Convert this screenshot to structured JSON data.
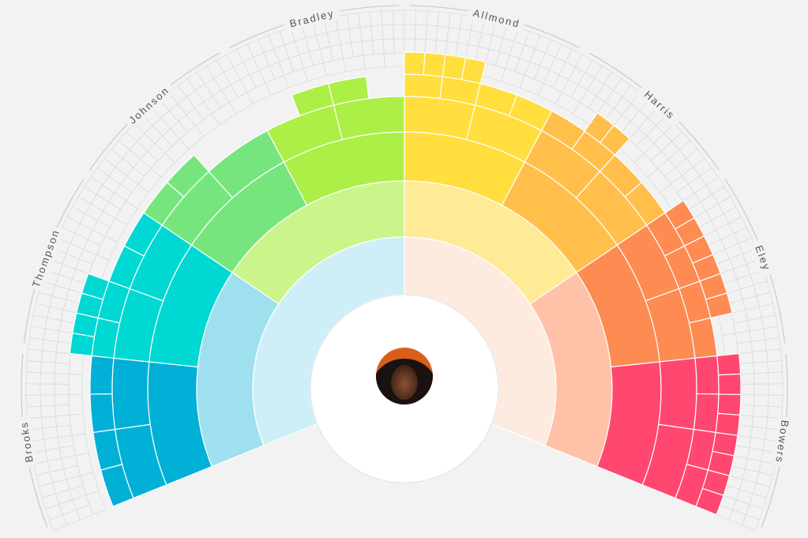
{
  "chart_data": {
    "type": "fan",
    "root": {
      "avatar": "person-avatar"
    },
    "branches": [
      {
        "surname": "Brooks",
        "color": "#00b0d6",
        "light": "#cfeff8",
        "mid": "#9fe0ef"
      },
      {
        "surname": "Thompson",
        "color": "#00d8d4"
      },
      {
        "surname": "Johnson",
        "color": "#76e57e",
        "light": "#cbf58b"
      },
      {
        "surname": "Bradley",
        "color": "#acef47"
      },
      {
        "surname": "Allmond",
        "color": "#ffde3e",
        "light": "#ffea95"
      },
      {
        "surname": "Harris",
        "color": "#ffbf4a"
      },
      {
        "surname": "Eley",
        "color": "#fd8b52",
        "light": "#fdebdf",
        "mid": "#ffc2a8"
      },
      {
        "surname": "Bowers",
        "color": "#ff4770"
      }
    ]
  }
}
